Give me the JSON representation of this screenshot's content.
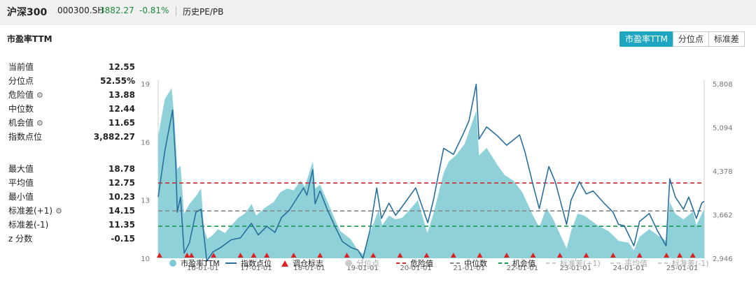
{
  "header": {
    "index_name": "沪深300",
    "code": "000300.SH",
    "price": "3882.27",
    "change": "-0.81%",
    "history_link": "历史PE/PB"
  },
  "panel": {
    "title": "市盈率TTM",
    "tabs": [
      {
        "label": "市盈率TTM",
        "active": true
      },
      {
        "label": "分位点",
        "active": false
      },
      {
        "label": "标准差",
        "active": false
      }
    ]
  },
  "stats": [
    {
      "label": "当前值",
      "value": "12.55",
      "gear": false
    },
    {
      "label": "分位点",
      "value": "52.55%",
      "gear": false
    },
    {
      "label": "危险值",
      "value": "13.88",
      "gear": true
    },
    {
      "label": "中位数",
      "value": "12.44",
      "gear": false
    },
    {
      "label": "机会值",
      "value": "11.65",
      "gear": true
    },
    {
      "label": "指数点位",
      "value": "3,882.27",
      "gear": false
    },
    {
      "label": "最大值",
      "value": "18.78",
      "gear": false
    },
    {
      "label": "平均值",
      "value": "12.75",
      "gear": false
    },
    {
      "label": "最小值",
      "value": "10.23",
      "gear": false
    },
    {
      "label": "标准差(+1)",
      "value": "14.15",
      "gear": true
    },
    {
      "label": "标准差(-1)",
      "value": "11.35",
      "gear": false
    },
    {
      "label": "z 分数",
      "value": "-0.15",
      "gear": false
    }
  ],
  "colors": {
    "area": "#8fd1d9",
    "index_line": "#2a6f9c",
    "marker": "#e02020",
    "danger": "#d42b2b",
    "median": "#888888",
    "opportunity": "#1a9a55",
    "accent": "#1ea6c0",
    "down": "#1a8a3a"
  },
  "chart_data": {
    "type": "area",
    "left_axis": {
      "ticks": [
        10,
        13,
        16,
        19
      ],
      "ylim": [
        10,
        19
      ]
    },
    "right_axis": {
      "ticks": [
        "2,946",
        "3,662",
        "4,378",
        "5,094",
        "5,808"
      ],
      "tick_values": [
        2946,
        3662,
        4378,
        5094,
        5808
      ],
      "ylim": [
        2946,
        5808
      ]
    },
    "x_ticks": [
      "16-01-01",
      "17-01-01",
      "18-01-01",
      "19-01-01",
      "20-01-01",
      "21-01-01",
      "22-01-01",
      "23-01-01",
      "24-01-01",
      "25-01-01"
    ],
    "x_range": [
      "2015-03-01",
      "2025-06-01"
    ],
    "reference_lines": {
      "danger": 13.88,
      "median": 12.44,
      "opportunity": 11.65
    },
    "series": [
      {
        "name": "市盈率TTM",
        "points": [
          [
            "2015-03-01",
            16.3
          ],
          [
            "2015-04-15",
            18.2
          ],
          [
            "2015-06-01",
            18.78
          ],
          [
            "2015-06-20",
            17.2
          ],
          [
            "2015-07-10",
            14.6
          ],
          [
            "2015-08-01",
            14.8
          ],
          [
            "2015-08-25",
            12.3
          ],
          [
            "2015-10-01",
            12.8
          ],
          [
            "2015-11-15",
            13.2
          ],
          [
            "2015-12-20",
            13.6
          ],
          [
            "2016-01-10",
            11.5
          ],
          [
            "2016-02-01",
            11.0
          ],
          [
            "2016-03-10",
            11.2
          ],
          [
            "2016-04-15",
            11.5
          ],
          [
            "2016-06-01",
            11.3
          ],
          [
            "2016-07-15",
            11.7
          ],
          [
            "2016-09-01",
            12.1
          ],
          [
            "2016-10-15",
            12.3
          ],
          [
            "2016-12-01",
            12.8
          ],
          [
            "2017-01-01",
            12.2
          ],
          [
            "2017-03-01",
            12.6
          ],
          [
            "2017-05-01",
            12.9
          ],
          [
            "2017-06-15",
            13.4
          ],
          [
            "2017-08-01",
            13.6
          ],
          [
            "2017-09-15",
            13.5
          ],
          [
            "2017-11-01",
            14.0
          ],
          [
            "2017-12-01",
            13.7
          ],
          [
            "2018-01-25",
            15.0
          ],
          [
            "2018-02-10",
            13.6
          ],
          [
            "2018-03-15",
            13.8
          ],
          [
            "2018-05-01",
            13.0
          ],
          [
            "2018-06-20",
            12.1
          ],
          [
            "2018-08-01",
            11.4
          ],
          [
            "2018-10-10",
            11.0
          ],
          [
            "2018-12-01",
            10.4
          ],
          [
            "2019-01-05",
            10.23
          ],
          [
            "2019-02-15",
            11.2
          ],
          [
            "2019-04-20",
            12.5
          ],
          [
            "2019-05-15",
            11.7
          ],
          [
            "2019-07-01",
            12.2
          ],
          [
            "2019-08-15",
            12.0
          ],
          [
            "2019-10-01",
            12.1
          ],
          [
            "2019-12-01",
            12.6
          ],
          [
            "2020-01-15",
            13.0
          ],
          [
            "2020-03-20",
            11.3
          ],
          [
            "2020-05-01",
            12.3
          ],
          [
            "2020-07-10",
            14.4
          ],
          [
            "2020-08-15",
            15.0
          ],
          [
            "2020-10-01",
            15.3
          ],
          [
            "2020-12-01",
            15.9
          ],
          [
            "2021-02-18",
            17.6
          ],
          [
            "2021-03-10",
            15.3
          ],
          [
            "2021-05-01",
            15.7
          ],
          [
            "2021-07-15",
            14.8
          ],
          [
            "2021-09-01",
            14.3
          ],
          [
            "2021-11-01",
            14.0
          ],
          [
            "2022-01-01",
            13.4
          ],
          [
            "2022-03-15",
            12.2
          ],
          [
            "2022-04-27",
            11.6
          ],
          [
            "2022-06-15",
            12.6
          ],
          [
            "2022-08-01",
            12.0
          ],
          [
            "2022-10-31",
            10.5
          ],
          [
            "2022-12-01",
            11.4
          ],
          [
            "2023-01-15",
            12.3
          ],
          [
            "2023-03-01",
            12.2
          ],
          [
            "2023-06-01",
            11.7
          ],
          [
            "2023-08-15",
            11.4
          ],
          [
            "2023-10-23",
            10.9
          ],
          [
            "2024-01-01",
            10.8
          ],
          [
            "2024-02-05",
            10.4
          ],
          [
            "2024-03-15",
            11.1
          ],
          [
            "2024-05-20",
            11.5
          ],
          [
            "2024-07-15",
            11.2
          ],
          [
            "2024-09-15",
            10.9
          ],
          [
            "2024-10-08",
            12.9
          ],
          [
            "2024-11-15",
            12.3
          ],
          [
            "2025-01-10",
            12.0
          ],
          [
            "2025-03-15",
            12.4
          ],
          [
            "2025-04-08",
            11.7
          ],
          [
            "2025-06-01",
            12.55
          ]
        ]
      },
      {
        "name": "指数点位",
        "points": [
          [
            "2015-03-01",
            3950
          ],
          [
            "2015-04-15",
            4700
          ],
          [
            "2015-06-08",
            5380
          ],
          [
            "2015-06-30",
            4470
          ],
          [
            "2015-07-10",
            3700
          ],
          [
            "2015-08-01",
            3950
          ],
          [
            "2015-08-26",
            3030
          ],
          [
            "2015-10-01",
            3200
          ],
          [
            "2015-11-15",
            3700
          ],
          [
            "2015-12-20",
            3750
          ],
          [
            "2016-01-28",
            2900
          ],
          [
            "2016-03-10",
            3050
          ],
          [
            "2016-05-01",
            3120
          ],
          [
            "2016-07-15",
            3250
          ],
          [
            "2016-09-15",
            3280
          ],
          [
            "2016-11-29",
            3520
          ],
          [
            "2017-01-15",
            3330
          ],
          [
            "2017-03-15",
            3470
          ],
          [
            "2017-05-10",
            3370
          ],
          [
            "2017-06-25",
            3620
          ],
          [
            "2017-08-15",
            3730
          ],
          [
            "2017-10-15",
            3960
          ],
          [
            "2017-11-22",
            4100
          ],
          [
            "2017-12-15",
            3980
          ],
          [
            "2018-01-24",
            4400
          ],
          [
            "2018-02-09",
            3840
          ],
          [
            "2018-03-15",
            4050
          ],
          [
            "2018-05-01",
            3760
          ],
          [
            "2018-06-25",
            3470
          ],
          [
            "2018-08-15",
            3220
          ],
          [
            "2018-10-15",
            3120
          ],
          [
            "2018-12-01",
            3080
          ],
          [
            "2019-01-03",
            2940
          ],
          [
            "2019-02-20",
            3400
          ],
          [
            "2019-04-08",
            4100
          ],
          [
            "2019-05-10",
            3600
          ],
          [
            "2019-07-01",
            3850
          ],
          [
            "2019-08-15",
            3650
          ],
          [
            "2019-10-01",
            3800
          ],
          [
            "2019-12-31",
            4100
          ],
          [
            "2020-03-23",
            3530
          ],
          [
            "2020-05-01",
            3900
          ],
          [
            "2020-07-10",
            4750
          ],
          [
            "2020-09-15",
            4650
          ],
          [
            "2020-11-20",
            4980
          ],
          [
            "2020-12-31",
            5200
          ],
          [
            "2021-02-18",
            5800
          ],
          [
            "2021-03-09",
            4900
          ],
          [
            "2021-05-01",
            5100
          ],
          [
            "2021-07-15",
            4950
          ],
          [
            "2021-09-15",
            4800
          ],
          [
            "2021-12-13",
            4970
          ],
          [
            "2022-01-20",
            4680
          ],
          [
            "2022-03-15",
            4150
          ],
          [
            "2022-04-27",
            3760
          ],
          [
            "2022-07-01",
            4450
          ],
          [
            "2022-08-15",
            4200
          ],
          [
            "2022-10-31",
            3500
          ],
          [
            "2022-12-01",
            3900
          ],
          [
            "2023-01-28",
            4200
          ],
          [
            "2023-03-15",
            4000
          ],
          [
            "2023-05-01",
            4050
          ],
          [
            "2023-07-15",
            3850
          ],
          [
            "2023-09-15",
            3700
          ],
          [
            "2023-10-23",
            3500
          ],
          [
            "2023-12-01",
            3480
          ],
          [
            "2024-02-05",
            3150
          ],
          [
            "2024-03-15",
            3550
          ],
          [
            "2024-05-20",
            3680
          ],
          [
            "2024-07-15",
            3400
          ],
          [
            "2024-09-13",
            3150
          ],
          [
            "2024-10-08",
            4250
          ],
          [
            "2024-11-15",
            3950
          ],
          [
            "2025-01-10",
            3750
          ],
          [
            "2025-02-15",
            3950
          ],
          [
            "2025-04-08",
            3600
          ],
          [
            "2025-05-15",
            3850
          ],
          [
            "2025-06-01",
            3882
          ]
        ]
      }
    ],
    "markers": [
      "2015-03-10",
      "2015-09-15",
      "2015-10-15",
      "2016-03-15",
      "2016-09-15",
      "2016-12-15",
      "2017-03-15",
      "2017-09-15",
      "2018-03-15",
      "2018-09-15",
      "2019-03-15",
      "2019-09-15",
      "2020-03-15",
      "2020-09-15",
      "2021-03-15",
      "2021-09-15",
      "2022-03-15",
      "2022-09-15",
      "2023-03-15",
      "2023-09-15",
      "2024-03-15",
      "2024-09-15",
      "2024-12-15",
      "2025-03-15"
    ],
    "legend": [
      {
        "label": "市盈率TTM",
        "kind": "dot",
        "dim": false
      },
      {
        "label": "指数点位",
        "kind": "line",
        "dim": false
      },
      {
        "label": "调仓标志",
        "kind": "triangle",
        "dim": false
      },
      {
        "label": "分位点",
        "kind": "dot",
        "dim": true
      },
      {
        "label": "危险值",
        "kind": "dash-red",
        "dim": false
      },
      {
        "label": "中位数",
        "kind": "dash-gray",
        "dim": false
      },
      {
        "label": "机会值",
        "kind": "dash-green",
        "dim": false
      },
      {
        "label": "标准差(+1)",
        "kind": "dash-light",
        "dim": true
      },
      {
        "label": "平均值",
        "kind": "dash-light",
        "dim": true
      },
      {
        "label": "标准差(-1)",
        "kind": "dash-light",
        "dim": true
      }
    ]
  }
}
